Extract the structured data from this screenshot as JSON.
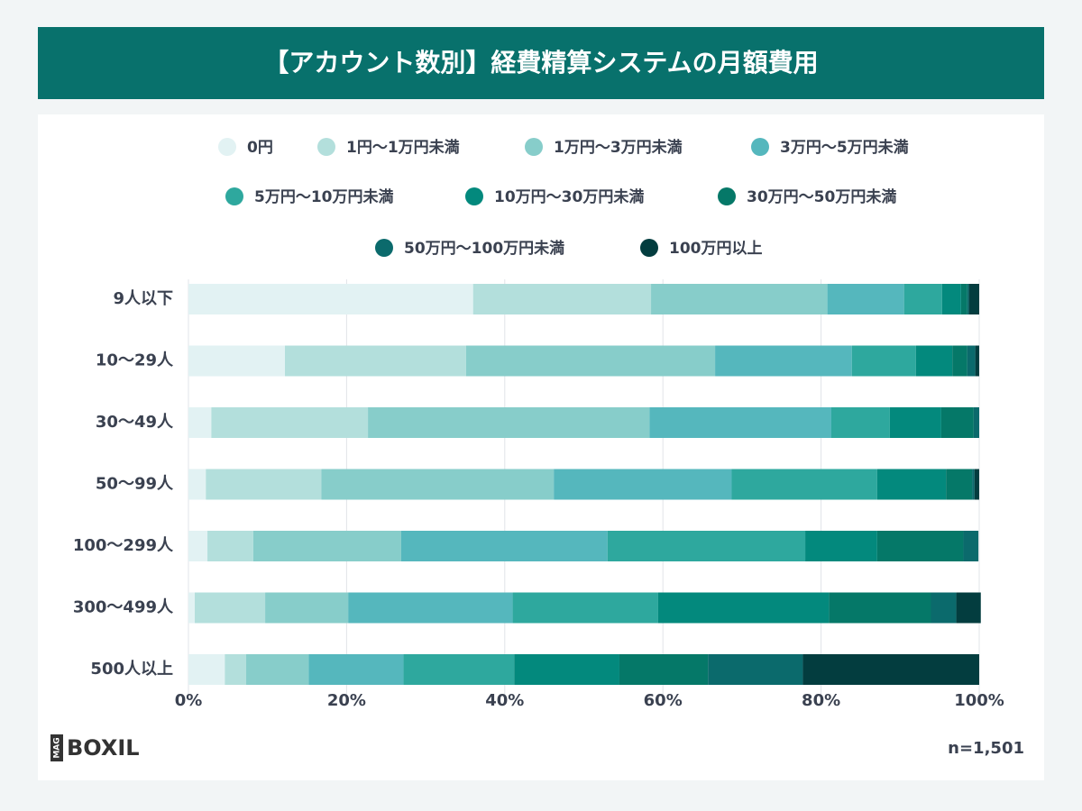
{
  "brand": {
    "mag": "MAG",
    "name": "BOXIL"
  },
  "chart_data": {
    "type": "bar",
    "orientation": "horizontal",
    "stacked": true,
    "title": "【アカウント数別】経費精算システムの月額費用",
    "note": "n=1,501",
    "categories": [
      "9人以下",
      "10〜29人",
      "30〜49人",
      "50〜99人",
      "100〜299人",
      "300〜499人",
      "500人以上"
    ],
    "series": [
      {
        "name": "0円",
        "color": "#e2f2f3",
        "values": [
          36.0,
          12.2,
          2.9,
          2.2,
          2.4,
          0.8,
          4.6
        ]
      },
      {
        "name": "1円〜1万円未満",
        "color": "#b3dfdc",
        "values": [
          22.5,
          22.9,
          19.8,
          14.6,
          5.8,
          8.9,
          2.7
        ]
      },
      {
        "name": "1万円〜3万円未満",
        "color": "#87cdca",
        "values": [
          22.3,
          31.5,
          35.6,
          29.4,
          18.7,
          10.5,
          7.9
        ]
      },
      {
        "name": "3万円〜5万円未満",
        "color": "#55b7bd",
        "values": [
          9.7,
          17.3,
          23.0,
          22.5,
          26.1,
          20.8,
          12.0
        ]
      },
      {
        "name": "5万円〜10万円未満",
        "color": "#2ea89e",
        "values": [
          4.8,
          8.1,
          7.4,
          18.4,
          25.0,
          18.4,
          14.0
        ]
      },
      {
        "name": "10万円〜30万円未満",
        "color": "#03897d",
        "values": [
          2.4,
          4.6,
          6.5,
          8.7,
          9.1,
          21.6,
          13.3
        ]
      },
      {
        "name": "30万円〜50万円未満",
        "color": "#057868",
        "values": [
          0.8,
          1.9,
          4.1,
          3.3,
          10.9,
          12.9,
          11.2
        ]
      },
      {
        "name": "50万円〜100万円未満",
        "color": "#0b6a6c",
        "values": [
          0.2,
          1.0,
          0.7,
          0.3,
          1.9,
          3.2,
          12.0
        ]
      },
      {
        "name": "100万円以上",
        "color": "#033d3f",
        "values": [
          1.3,
          0.5,
          0,
          0.6,
          0,
          3.1,
          22.3
        ]
      }
    ],
    "xlim": [
      0,
      100
    ],
    "xticks": [
      {
        "value": 0,
        "label": "0%"
      },
      {
        "value": 20,
        "label": "20%"
      },
      {
        "value": 40,
        "label": "40%"
      },
      {
        "value": 60,
        "label": "60%"
      },
      {
        "value": 80,
        "label": "80%"
      },
      {
        "value": 100,
        "label": "100%"
      }
    ],
    "grid": true
  }
}
